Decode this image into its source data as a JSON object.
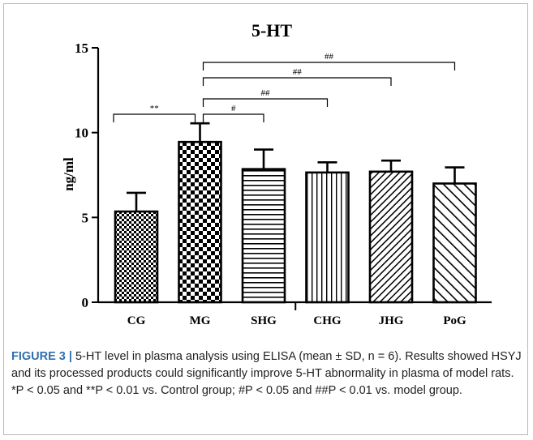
{
  "chart_data": {
    "type": "bar",
    "title": "5-HT",
    "ylabel": "ng/ml",
    "xlabel": "",
    "categories": [
      "CG",
      "MG",
      "SHG",
      "CHG",
      "JHG",
      "PoG"
    ],
    "values": [
      5.35,
      9.45,
      7.85,
      7.65,
      7.7,
      7.0
    ],
    "errors": [
      1.1,
      1.1,
      1.15,
      0.6,
      0.65,
      0.95
    ],
    "patterns": [
      "fine-checker",
      "coarse-checker",
      "horizontal-lines",
      "vertical-lines",
      "diagonal-forward",
      "diagonal-backward"
    ],
    "ylim": [
      0,
      15
    ],
    "yticks": [
      "0",
      "5",
      "10",
      "15"
    ],
    "grid": false,
    "annotations": [
      {
        "from": "CG",
        "to": "MG",
        "label": "**",
        "level": 1
      },
      {
        "from": "MG",
        "to": "SHG",
        "label": "#",
        "level": 1
      },
      {
        "from": "MG",
        "to": "CHG",
        "label": "##",
        "level": 2
      },
      {
        "from": "MG",
        "to": "JHG",
        "label": "##",
        "level": 3
      },
      {
        "from": "MG",
        "to": "PoG",
        "label": "##",
        "level": 4
      }
    ]
  },
  "caption": {
    "label": "FIGURE 3 |",
    "text": " 5-HT level in plasma analysis using ELISA (mean ± SD, n = 6). Results showed HSYJ and its processed products could significantly improve 5-HT abnormality in plasma of model rats. *P < 0.05 and **P < 0.01 vs. Control group; #P < 0.05 and ##P < 0.01 vs. model group."
  },
  "colors": {
    "bar_stroke": "#000000",
    "caption_label": "#2f6fb0",
    "frame_border": "#b8b8b8"
  }
}
